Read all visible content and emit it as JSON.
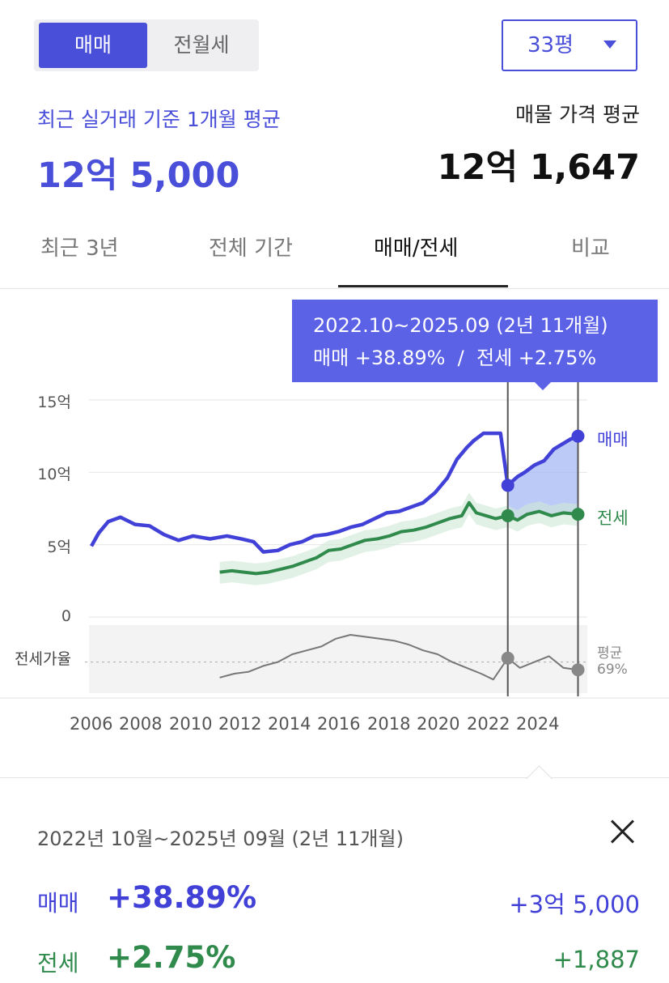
{
  "deal_toggle": {
    "active": "매매",
    "inactive": "전월세"
  },
  "area": {
    "selected": "33평"
  },
  "summary": {
    "recent_label": "최근 실거래 기준 1개월 평균",
    "recent_price": "12억 5,000",
    "listing_label": "매물 가격 평균",
    "listing_price": "12억 1,647"
  },
  "tabs": [
    {
      "label": "최근 3년",
      "active": false
    },
    {
      "label": "전체 기간",
      "active": false
    },
    {
      "label": "매매/전세",
      "active": true
    },
    {
      "label": "비교",
      "active": false
    }
  ],
  "tooltip": {
    "period": "2022.10~2025.09 (2년 11개월)",
    "change": "매매 +38.89%  /  전세 +2.75%"
  },
  "chart_data": {
    "type": "line",
    "x_range": [
      2005.5,
      2025.75
    ],
    "ylim": [
      0,
      15
    ],
    "yticks": [
      {
        "value": 15,
        "label": "15억"
      },
      {
        "value": 10,
        "label": "10억"
      },
      {
        "value": 5,
        "label": "5억"
      },
      {
        "value": 0,
        "label": "0"
      }
    ],
    "xticks": [
      "2006",
      "2008",
      "2010",
      "2012",
      "2014",
      "2016",
      "2018",
      "2020",
      "2022",
      "2024"
    ],
    "series": [
      {
        "name": "매매",
        "color": "#4141d8",
        "points": [
          [
            2005.6,
            4.9
          ],
          [
            2005.9,
            5.8
          ],
          [
            2006.3,
            6.6
          ],
          [
            2006.8,
            6.9
          ],
          [
            2007.4,
            6.4
          ],
          [
            2008,
            6.3
          ],
          [
            2008.6,
            5.7
          ],
          [
            2009.2,
            5.3
          ],
          [
            2009.8,
            5.6
          ],
          [
            2010.5,
            5.4
          ],
          [
            2011.2,
            5.6
          ],
          [
            2011.8,
            5.4
          ],
          [
            2012.3,
            5.2
          ],
          [
            2012.7,
            4.5
          ],
          [
            2013.3,
            4.6
          ],
          [
            2013.8,
            5.0
          ],
          [
            2014.3,
            5.2
          ],
          [
            2014.8,
            5.6
          ],
          [
            2015.3,
            5.7
          ],
          [
            2015.8,
            5.9
          ],
          [
            2016.3,
            6.2
          ],
          [
            2016.8,
            6.4
          ],
          [
            2017.3,
            6.8
          ],
          [
            2017.8,
            7.2
          ],
          [
            2018.3,
            7.3
          ],
          [
            2018.8,
            7.6
          ],
          [
            2019.3,
            7.9
          ],
          [
            2019.8,
            8.6
          ],
          [
            2020.3,
            9.6
          ],
          [
            2020.7,
            10.9
          ],
          [
            2021.1,
            11.7
          ],
          [
            2021.4,
            12.2
          ],
          [
            2021.8,
            12.7
          ],
          [
            2022.2,
            12.7
          ],
          [
            2022.5,
            12.7
          ],
          [
            2022.8,
            9.1
          ],
          [
            2023.2,
            9.7
          ],
          [
            2023.5,
            10.0
          ],
          [
            2023.9,
            10.5
          ],
          [
            2024.3,
            10.8
          ],
          [
            2024.7,
            11.6
          ],
          [
            2025.1,
            12.0
          ],
          [
            2025.4,
            12.3
          ],
          [
            2025.7,
            12.5
          ]
        ]
      },
      {
        "name": "전세",
        "color": "#2f8a4c",
        "points": [
          [
            2010.9,
            3.1
          ],
          [
            2011.4,
            3.2
          ],
          [
            2011.9,
            3.1
          ],
          [
            2012.4,
            3.0
          ],
          [
            2012.9,
            3.1
          ],
          [
            2013.4,
            3.3
          ],
          [
            2013.9,
            3.5
          ],
          [
            2014.4,
            3.8
          ],
          [
            2014.9,
            4.1
          ],
          [
            2015.4,
            4.6
          ],
          [
            2015.9,
            4.7
          ],
          [
            2016.4,
            5.0
          ],
          [
            2016.9,
            5.3
          ],
          [
            2017.4,
            5.4
          ],
          [
            2017.9,
            5.6
          ],
          [
            2018.4,
            5.9
          ],
          [
            2018.9,
            6.0
          ],
          [
            2019.4,
            6.2
          ],
          [
            2019.9,
            6.5
          ],
          [
            2020.4,
            6.8
          ],
          [
            2020.9,
            7.0
          ],
          [
            2021.2,
            7.9
          ],
          [
            2021.5,
            7.2
          ],
          [
            2021.9,
            7.0
          ],
          [
            2022.3,
            6.8
          ],
          [
            2022.8,
            7.0
          ],
          [
            2023.2,
            6.7
          ],
          [
            2023.6,
            7.1
          ],
          [
            2024.1,
            7.3
          ],
          [
            2024.6,
            7.0
          ],
          [
            2025.1,
            7.2
          ],
          [
            2025.7,
            7.1
          ]
        ]
      },
      {
        "name": "전세가율",
        "color": "#777777",
        "points": [
          [
            2010.9,
            58
          ],
          [
            2011.5,
            60
          ],
          [
            2012.1,
            61
          ],
          [
            2012.7,
            64
          ],
          [
            2013.3,
            66
          ],
          [
            2013.9,
            70
          ],
          [
            2014.5,
            72
          ],
          [
            2015.1,
            74
          ],
          [
            2015.7,
            78
          ],
          [
            2016.3,
            80
          ],
          [
            2016.9,
            79
          ],
          [
            2017.5,
            78
          ],
          [
            2018.1,
            77
          ],
          [
            2018.7,
            75
          ],
          [
            2019.3,
            72
          ],
          [
            2019.9,
            70
          ],
          [
            2020.5,
            66
          ],
          [
            2021.1,
            63
          ],
          [
            2021.7,
            60
          ],
          [
            2022.2,
            57
          ],
          [
            2022.8,
            68
          ],
          [
            2023.3,
            63
          ],
          [
            2023.9,
            66
          ],
          [
            2024.5,
            69
          ],
          [
            2025.1,
            63
          ],
          [
            2025.7,
            62
          ]
        ]
      }
    ],
    "ratio_label": "전세가율",
    "ratio_average_label": "평균",
    "ratio_average_value": "69%",
    "selection": {
      "from": 2022.8,
      "to": 2025.7
    }
  },
  "panel": {
    "period": "2022년 10월~2025년 09월 (2년 11개월)",
    "rows": [
      {
        "label": "매매",
        "pct": "+38.89%",
        "amount": "+3억 5,000",
        "color": "#4141d8"
      },
      {
        "label": "전세",
        "pct": "+2.75%",
        "amount": "+1,887",
        "color": "#2f8a4c"
      }
    ]
  }
}
